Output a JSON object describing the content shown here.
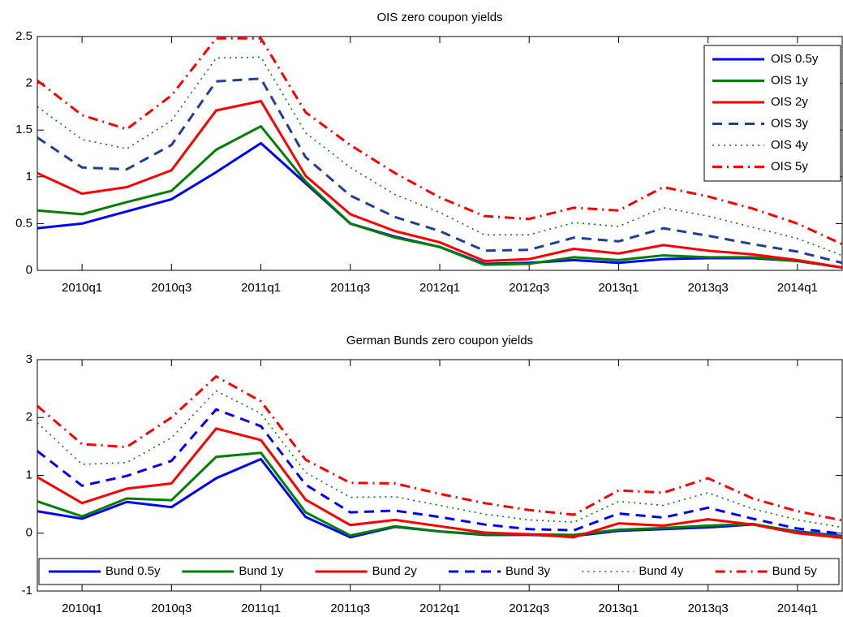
{
  "chart_data": [
    {
      "type": "line",
      "title": "OIS zero coupon yields",
      "categories": [
        null,
        "2010q1",
        null,
        "2010q3",
        null,
        "2011q1",
        null,
        "2011q3",
        null,
        "2012q1",
        null,
        "2012q3",
        null,
        "2013q1",
        null,
        "2013q3",
        null,
        "2014q1",
        null
      ],
      "ylim": [
        0,
        2.5
      ],
      "yticks": [
        0,
        0.5,
        1,
        1.5,
        2,
        2.5
      ],
      "grid": false,
      "legend": "upper right",
      "series": [
        {
          "name": "OIS 0.5y",
          "color": "#0000ff",
          "dash": "solid",
          "values": [
            0.45,
            0.5,
            0.63,
            0.76,
            1.05,
            1.36,
            0.93,
            0.5,
            0.36,
            0.25,
            0.07,
            0.08,
            0.11,
            0.08,
            0.12,
            0.13,
            0.13,
            0.1,
            0.03
          ]
        },
        {
          "name": "OIS 1y",
          "color": "#008000",
          "dash": "solid",
          "values": [
            0.64,
            0.6,
            0.73,
            0.85,
            1.29,
            1.54,
            0.95,
            0.5,
            0.35,
            0.25,
            0.06,
            0.07,
            0.14,
            0.11,
            0.16,
            0.14,
            0.14,
            0.1,
            0.03
          ]
        },
        {
          "name": "OIS 2y",
          "color": "#ff0000",
          "dash": "solid",
          "values": [
            1.04,
            0.82,
            0.89,
            1.07,
            1.71,
            1.81,
            1.01,
            0.6,
            0.42,
            0.3,
            0.1,
            0.12,
            0.23,
            0.18,
            0.27,
            0.21,
            0.17,
            0.11,
            0.03
          ]
        },
        {
          "name": "OIS 3y",
          "color": "#1f3f99",
          "dash": "dashed",
          "values": [
            1.42,
            1.1,
            1.08,
            1.34,
            2.02,
            2.05,
            1.21,
            0.8,
            0.57,
            0.42,
            0.21,
            0.22,
            0.35,
            0.31,
            0.45,
            0.37,
            0.28,
            0.2,
            0.08
          ]
        },
        {
          "name": "OIS 4y",
          "color": "#008000",
          "dash": "dotted",
          "values": [
            1.75,
            1.4,
            1.3,
            1.6,
            2.27,
            2.28,
            1.47,
            1.1,
            0.81,
            0.62,
            0.38,
            0.38,
            0.51,
            0.47,
            0.67,
            0.58,
            0.46,
            0.34,
            0.16
          ]
        },
        {
          "name": "OIS 5y",
          "color": "#ff0000",
          "dash": "dashdot",
          "values": [
            2.03,
            1.66,
            1.51,
            1.87,
            2.48,
            2.48,
            1.69,
            1.34,
            1.04,
            0.78,
            0.58,
            0.55,
            0.67,
            0.64,
            0.89,
            0.79,
            0.66,
            0.5,
            0.28
          ]
        }
      ]
    },
    {
      "type": "line",
      "title": "German Bunds zero coupon yields",
      "categories": [
        null,
        "2010q1",
        null,
        "2010q3",
        null,
        "2011q1",
        null,
        "2011q3",
        null,
        "2012q1",
        null,
        "2012q3",
        null,
        "2013q1",
        null,
        "2013q3",
        null,
        "2014q1",
        null
      ],
      "ylim": [
        -1,
        3
      ],
      "yticks": [
        -1,
        0,
        1,
        2,
        3
      ],
      "grid": false,
      "legend": "lower center",
      "series": [
        {
          "name": "Bund 0.5y",
          "color": "#0000ff",
          "dash": "solid",
          "values": [
            0.38,
            0.25,
            0.54,
            0.45,
            0.95,
            1.28,
            0.28,
            -0.07,
            0.11,
            0.03,
            -0.03,
            -0.03,
            -0.05,
            0.04,
            0.07,
            0.1,
            0.15,
            0.03,
            -0.05
          ]
        },
        {
          "name": "Bund 1y",
          "color": "#008000",
          "dash": "solid",
          "values": [
            0.55,
            0.29,
            0.6,
            0.57,
            1.32,
            1.39,
            0.36,
            -0.04,
            0.12,
            0.03,
            -0.02,
            -0.02,
            -0.03,
            0.06,
            0.09,
            0.13,
            0.16,
            0.02,
            -0.06
          ]
        },
        {
          "name": "Bund 2y",
          "color": "#ff0000",
          "dash": "solid",
          "values": [
            0.97,
            0.52,
            0.77,
            0.86,
            1.81,
            1.61,
            0.58,
            0.14,
            0.23,
            0.12,
            0.01,
            -0.02,
            -0.07,
            0.17,
            0.13,
            0.24,
            0.15,
            0.0,
            -0.08
          ]
        },
        {
          "name": "Bund 3y",
          "color": "#0000ff",
          "dash": "dashed",
          "values": [
            1.42,
            0.82,
            0.99,
            1.25,
            2.14,
            1.85,
            0.84,
            0.36,
            0.39,
            0.28,
            0.15,
            0.07,
            0.05,
            0.34,
            0.27,
            0.44,
            0.25,
            0.08,
            -0.01
          ]
        },
        {
          "name": "Bund 4y",
          "color": "#008000",
          "dash": "dotted",
          "values": [
            1.91,
            1.19,
            1.22,
            1.65,
            2.46,
            2.07,
            1.05,
            0.62,
            0.63,
            0.48,
            0.33,
            0.23,
            0.19,
            0.55,
            0.48,
            0.7,
            0.42,
            0.23,
            0.1
          ]
        },
        {
          "name": "Bund 5y",
          "color": "#ff0000",
          "dash": "dashdot",
          "values": [
            2.2,
            1.54,
            1.49,
            2.0,
            2.71,
            2.28,
            1.27,
            0.87,
            0.86,
            0.68,
            0.52,
            0.4,
            0.32,
            0.74,
            0.7,
            0.95,
            0.6,
            0.38,
            0.22
          ]
        }
      ]
    }
  ]
}
